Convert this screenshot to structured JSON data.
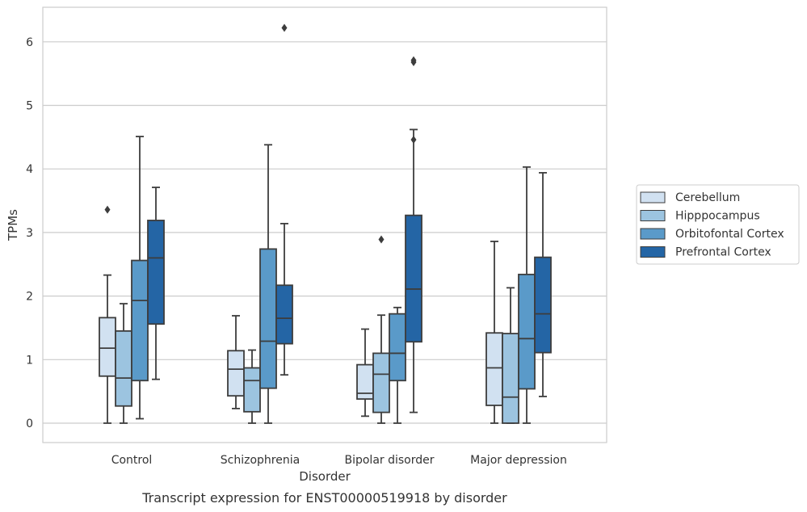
{
  "chart_data": {
    "type": "box",
    "caption": "Transcript expression for ENST00000519918 by disorder",
    "xlabel": "Disorder",
    "ylabel": "TPMs",
    "ylim": [
      -0.3,
      6.55
    ],
    "yticks": [
      0,
      1,
      2,
      3,
      4,
      5,
      6
    ],
    "grid": true,
    "legend_position": "right",
    "categories": [
      "Control",
      "Schizophrenia",
      "Bipolar disorder",
      "Major depression"
    ],
    "series": [
      {
        "name": "Cerebellum",
        "color": "#d1e1f1",
        "boxes": [
          {
            "whisker_low": 0.0,
            "q1": 0.74,
            "median": 1.18,
            "q3": 1.66,
            "whisker_high": 2.33,
            "outliers": [
              3.36
            ]
          },
          {
            "whisker_low": 0.23,
            "q1": 0.43,
            "median": 0.85,
            "q3": 1.14,
            "whisker_high": 1.69,
            "outliers": []
          },
          {
            "whisker_low": 0.11,
            "q1": 0.38,
            "median": 0.47,
            "q3": 0.92,
            "whisker_high": 1.48,
            "outliers": []
          },
          {
            "whisker_low": 0.0,
            "q1": 0.28,
            "median": 0.87,
            "q3": 1.42,
            "whisker_high": 2.86,
            "outliers": []
          }
        ]
      },
      {
        "name": "Hipppocampus",
        "color": "#9cc4e0",
        "boxes": [
          {
            "whisker_low": 0.0,
            "q1": 0.27,
            "median": 0.71,
            "q3": 1.45,
            "whisker_high": 1.88,
            "outliers": []
          },
          {
            "whisker_low": 0.0,
            "q1": 0.18,
            "median": 0.67,
            "q3": 0.87,
            "whisker_high": 1.15,
            "outliers": []
          },
          {
            "whisker_low": 0.0,
            "q1": 0.17,
            "median": 0.77,
            "q3": 1.1,
            "whisker_high": 1.7,
            "outliers": [
              2.89
            ]
          },
          {
            "whisker_low": 0.0,
            "q1": 0.0,
            "median": 0.41,
            "q3": 1.41,
            "whisker_high": 2.13,
            "outliers": []
          }
        ]
      },
      {
        "name": "Orbitofontal Cortex",
        "color": "#5a9ac9",
        "boxes": [
          {
            "whisker_low": 0.07,
            "q1": 0.67,
            "median": 1.93,
            "q3": 2.56,
            "whisker_high": 4.51,
            "outliers": []
          },
          {
            "whisker_low": 0.0,
            "q1": 0.55,
            "median": 1.29,
            "q3": 2.74,
            "whisker_high": 4.38,
            "outliers": []
          },
          {
            "whisker_low": 0.0,
            "q1": 0.67,
            "median": 1.1,
            "q3": 1.72,
            "whisker_high": 1.82,
            "outliers": []
          },
          {
            "whisker_low": 0.0,
            "q1": 0.54,
            "median": 1.33,
            "q3": 2.34,
            "whisker_high": 4.03,
            "outliers": []
          }
        ]
      },
      {
        "name": "Prefrontal Cortex",
        "color": "#2465a5",
        "boxes": [
          {
            "whisker_low": 0.69,
            "q1": 1.56,
            "median": 2.6,
            "q3": 3.19,
            "whisker_high": 3.71,
            "outliers": []
          },
          {
            "whisker_low": 0.76,
            "q1": 1.25,
            "median": 1.65,
            "q3": 2.17,
            "whisker_high": 3.14,
            "outliers": [
              6.22
            ]
          },
          {
            "whisker_low": 0.17,
            "q1": 1.28,
            "median": 2.11,
            "q3": 3.27,
            "whisker_high": 4.62,
            "outliers": [
              4.46,
              5.68,
              5.71
            ]
          },
          {
            "whisker_low": 0.42,
            "q1": 1.11,
            "median": 1.72,
            "q3": 2.61,
            "whisker_high": 3.94,
            "outliers": []
          }
        ]
      }
    ]
  }
}
